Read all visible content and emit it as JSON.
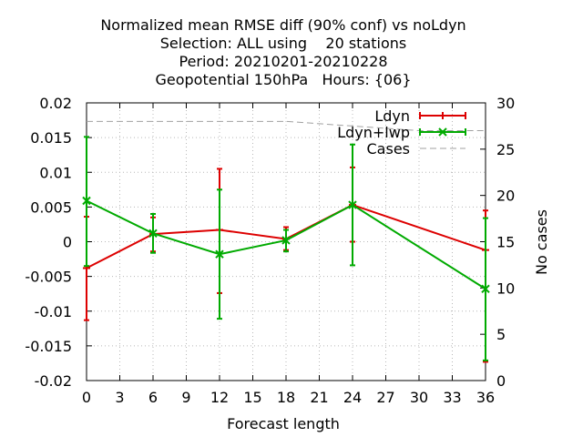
{
  "chart_data": {
    "type": "line",
    "title": [
      "Normalized mean RMSE diff (90% conf) vs noLdyn",
      "Selection: ALL using    20 stations",
      "Period: 20210201-20210228",
      "Geopotential 150hPa   Hours: {06}"
    ],
    "xlabel": "Forecast length",
    "ylabel": "",
    "y2label": "No cases",
    "xlim": [
      0,
      36
    ],
    "ylim": [
      -0.02,
      0.02
    ],
    "y2lim": [
      0,
      30
    ],
    "x_ticks": [
      "0",
      "3",
      "6",
      "9",
      "12",
      "15",
      "18",
      "21",
      "24",
      "27",
      "30",
      "33",
      "36"
    ],
    "y_ticks": [
      "-0.02",
      "-0.015",
      "-0.01",
      "-0.005",
      "0",
      "0.005",
      "0.01",
      "0.015",
      "0.02"
    ],
    "y2_ticks": [
      "0",
      "5",
      "10",
      "15",
      "20",
      "25",
      "30"
    ],
    "grid": true,
    "legend_position": "top-right",
    "series": [
      {
        "name": "Ldyn",
        "color": "#dd0000",
        "marker": "plus",
        "axis": "y",
        "x": [
          0,
          6,
          12,
          18,
          24,
          36
        ],
        "values": [
          -0.0038,
          0.0011,
          0.0017,
          0.0004,
          0.0053,
          -0.0012
        ],
        "err_low": [
          -0.0113,
          -0.0014,
          -0.0074,
          -0.0012,
          0.0,
          -0.0173
        ],
        "err_high": [
          0.0036,
          0.0035,
          0.0105,
          0.0021,
          0.0107,
          0.0045
        ]
      },
      {
        "name": "Ldyn+lwp",
        "color": "#00aa00",
        "marker": "cross",
        "axis": "y",
        "x": [
          0,
          6,
          12,
          18,
          24,
          36
        ],
        "values": [
          0.0059,
          0.0012,
          -0.0018,
          0.0002,
          0.0053,
          -0.0068
        ],
        "err_low": [
          -0.0035,
          -0.0016,
          -0.0111,
          -0.0014,
          -0.0034,
          -0.0171
        ],
        "err_high": [
          0.0151,
          0.004,
          0.0075,
          0.0017,
          0.014,
          0.0034
        ]
      },
      {
        "name": "Cases",
        "color": "#a0a0a0",
        "dash": true,
        "axis": "y2",
        "x": [
          0,
          6,
          12,
          18,
          24,
          30,
          36
        ],
        "values": [
          28,
          28,
          28,
          28,
          27.5,
          27,
          27
        ]
      }
    ]
  }
}
